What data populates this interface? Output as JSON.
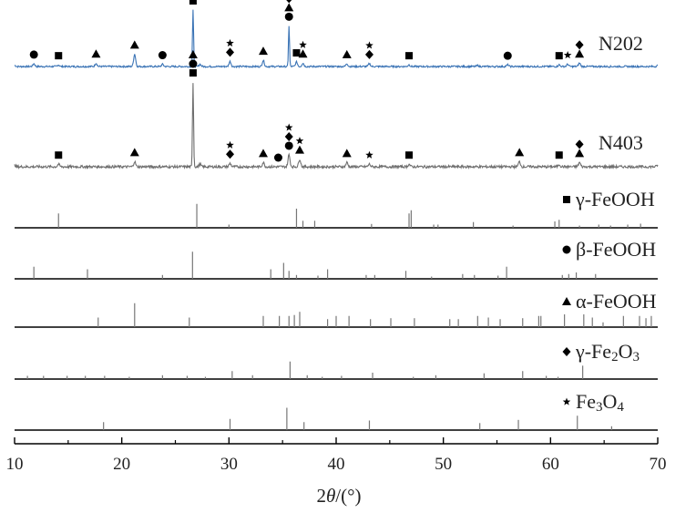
{
  "chart_data": {
    "type": "line",
    "xlabel_parts": [
      "2",
      "θ",
      "/(°)"
    ],
    "xlim": [
      10,
      70
    ],
    "xticks": [
      "10",
      "20",
      "30",
      "40",
      "50",
      "60",
      "70"
    ],
    "legend_symbols": {
      "square": "γ-FeOOH",
      "circle": "β-FeOOH",
      "triangle": "α-FeOOH",
      "diamond": "γ-Fe2O3",
      "star": "Fe3O4"
    },
    "series": [
      {
        "name": "N202",
        "color": "#3a73b5",
        "profile": [
          [
            10,
            0.02
          ],
          [
            11.8,
            0.05
          ],
          [
            14.1,
            0.03
          ],
          [
            17.6,
            0.06
          ],
          [
            21.2,
            0.22
          ],
          [
            23.8,
            0.04
          ],
          [
            26.65,
            1.0
          ],
          [
            27.3,
            0.04
          ],
          [
            30.1,
            0.09
          ],
          [
            33.2,
            0.11
          ],
          [
            35.6,
            0.72
          ],
          [
            36.3,
            0.08
          ],
          [
            36.9,
            0.06
          ],
          [
            41.0,
            0.05
          ],
          [
            43.1,
            0.05
          ],
          [
            46.8,
            0.03
          ],
          [
            53.2,
            0.02
          ],
          [
            56.0,
            0.03
          ],
          [
            60.8,
            0.03
          ],
          [
            61.6,
            0.04
          ],
          [
            62.7,
            0.06
          ],
          [
            70,
            0.02
          ]
        ],
        "markers": [
          {
            "x": 11.8,
            "symbols": [
              "circle"
            ]
          },
          {
            "x": 14.1,
            "symbols": [
              "square"
            ]
          },
          {
            "x": 17.6,
            "symbols": [
              "triangle"
            ]
          },
          {
            "x": 21.2,
            "symbols": [
              "triangle"
            ]
          },
          {
            "x": 23.8,
            "symbols": [
              "circle"
            ]
          },
          {
            "x": 26.65,
            "symbols": [
              "square",
              "triangle",
              "circle"
            ]
          },
          {
            "x": 30.1,
            "symbols": [
              "diamond",
              "star"
            ]
          },
          {
            "x": 33.2,
            "symbols": [
              "triangle"
            ]
          },
          {
            "x": 35.6,
            "symbols": [
              "circle",
              "triangle",
              "diamond",
              "star"
            ]
          },
          {
            "x": 36.3,
            "symbols": [
              "square"
            ]
          },
          {
            "x": 36.9,
            "symbols": [
              "triangle",
              "star"
            ]
          },
          {
            "x": 41.0,
            "symbols": [
              "triangle"
            ]
          },
          {
            "x": 43.1,
            "symbols": [
              "diamond",
              "star"
            ]
          },
          {
            "x": 46.8,
            "symbols": [
              "square"
            ]
          },
          {
            "x": 56.0,
            "symbols": [
              "circle"
            ]
          },
          {
            "x": 60.8,
            "symbols": [
              "square"
            ]
          },
          {
            "x": 61.6,
            "symbols": [
              "star"
            ]
          },
          {
            "x": 62.7,
            "symbols": [
              "triangle",
              "diamond"
            ]
          }
        ]
      },
      {
        "name": "N403",
        "color": "#6e6e6e",
        "profile": [
          [
            10,
            0.02
          ],
          [
            14.1,
            0.03
          ],
          [
            21.2,
            0.06
          ],
          [
            26.65,
            1.0
          ],
          [
            27.3,
            0.03
          ],
          [
            30.1,
            0.04
          ],
          [
            33.2,
            0.05
          ],
          [
            35.6,
            0.14
          ],
          [
            36.6,
            0.09
          ],
          [
            41.0,
            0.05
          ],
          [
            43.1,
            0.03
          ],
          [
            46.8,
            0.03
          ],
          [
            57.1,
            0.06
          ],
          [
            60.8,
            0.03
          ],
          [
            62.7,
            0.05
          ],
          [
            70,
            0.02
          ]
        ],
        "markers": [
          {
            "x": 14.1,
            "symbols": [
              "square"
            ]
          },
          {
            "x": 21.2,
            "symbols": [
              "triangle"
            ]
          },
          {
            "x": 26.65,
            "symbols": [
              "square",
              "circle",
              "triangle"
            ]
          },
          {
            "x": 30.1,
            "symbols": [
              "diamond",
              "star"
            ]
          },
          {
            "x": 33.2,
            "symbols": [
              "triangle"
            ]
          },
          {
            "x": 34.6,
            "symbols": [
              "circle"
            ]
          },
          {
            "x": 35.6,
            "symbols": [
              "circle",
              "diamond",
              "star"
            ]
          },
          {
            "x": 36.6,
            "symbols": [
              "triangle",
              "star"
            ]
          },
          {
            "x": 41.0,
            "symbols": [
              "triangle"
            ]
          },
          {
            "x": 43.1,
            "symbols": [
              "star"
            ]
          },
          {
            "x": 46.8,
            "symbols": [
              "square"
            ]
          },
          {
            "x": 57.1,
            "symbols": [
              "triangle"
            ]
          },
          {
            "x": 60.8,
            "symbols": [
              "square"
            ]
          },
          {
            "x": 62.7,
            "symbols": [
              "triangle",
              "diamond"
            ]
          }
        ]
      }
    ],
    "references": [
      {
        "name": "γ-FeOOH",
        "label_parts": [
          [
            "γ-FeOOH",
            false
          ]
        ],
        "symbol": "square",
        "peaks": [
          [
            14.1,
            0.45
          ],
          [
            27.0,
            0.75
          ],
          [
            30.0,
            0.1
          ],
          [
            36.3,
            0.6
          ],
          [
            36.9,
            0.22
          ],
          [
            38.0,
            0.22
          ],
          [
            43.3,
            0.12
          ],
          [
            46.8,
            0.45
          ],
          [
            47.0,
            0.55
          ],
          [
            49.1,
            0.1
          ],
          [
            49.5,
            0.1
          ],
          [
            52.8,
            0.18
          ],
          [
            56.5,
            0.07
          ],
          [
            60.4,
            0.2
          ],
          [
            60.8,
            0.25
          ],
          [
            62.7,
            0.07
          ],
          [
            64.5,
            0.1
          ],
          [
            65.6,
            0.07
          ],
          [
            67.2,
            0.1
          ],
          [
            68.4,
            0.13
          ]
        ]
      },
      {
        "name": "β-FeOOH",
        "label_parts": [
          [
            "β-FeOOH",
            false
          ]
        ],
        "symbol": "circle",
        "peaks": [
          [
            11.8,
            0.38
          ],
          [
            16.8,
            0.3
          ],
          [
            23.8,
            0.12
          ],
          [
            26.6,
            0.85
          ],
          [
            33.9,
            0.3
          ],
          [
            35.1,
            0.5
          ],
          [
            35.6,
            0.25
          ],
          [
            36.3,
            0.12
          ],
          [
            38.3,
            0.1
          ],
          [
            39.2,
            0.3
          ],
          [
            42.8,
            0.12
          ],
          [
            43.6,
            0.12
          ],
          [
            46.5,
            0.25
          ],
          [
            48.9,
            0.07
          ],
          [
            51.8,
            0.15
          ],
          [
            52.9,
            0.12
          ],
          [
            55.1,
            0.1
          ],
          [
            55.9,
            0.38
          ],
          [
            61.1,
            0.12
          ],
          [
            61.7,
            0.15
          ],
          [
            62.4,
            0.2
          ],
          [
            64.2,
            0.15
          ]
        ]
      },
      {
        "name": "α-FeOOH",
        "label_parts": [
          [
            "α-FeOOH",
            false
          ]
        ],
        "symbol": "triangle",
        "peaks": [
          [
            17.8,
            0.3
          ],
          [
            21.2,
            0.75
          ],
          [
            26.3,
            0.3
          ],
          [
            33.2,
            0.35
          ],
          [
            34.7,
            0.35
          ],
          [
            35.6,
            0.35
          ],
          [
            36.1,
            0.38
          ],
          [
            36.6,
            0.48
          ],
          [
            39.2,
            0.25
          ],
          [
            40.0,
            0.35
          ],
          [
            41.2,
            0.35
          ],
          [
            43.2,
            0.25
          ],
          [
            45.1,
            0.28
          ],
          [
            47.3,
            0.28
          ],
          [
            50.6,
            0.25
          ],
          [
            51.4,
            0.25
          ],
          [
            53.2,
            0.35
          ],
          [
            54.2,
            0.3
          ],
          [
            55.3,
            0.25
          ],
          [
            57.4,
            0.28
          ],
          [
            58.9,
            0.35
          ],
          [
            59.1,
            0.35
          ],
          [
            61.3,
            0.4
          ],
          [
            63.1,
            0.4
          ],
          [
            63.9,
            0.3
          ],
          [
            64.9,
            0.15
          ],
          [
            66.8,
            0.35
          ],
          [
            68.3,
            0.35
          ],
          [
            68.9,
            0.28
          ],
          [
            69.4,
            0.35
          ]
        ]
      },
      {
        "name": "γ-Fe2O3",
        "label_parts": [
          [
            "γ-Fe",
            false
          ],
          [
            "2",
            true
          ],
          [
            "O",
            false
          ],
          [
            "3",
            true
          ]
        ],
        "symbol": "diamond",
        "peaks": [
          [
            11.2,
            0.1
          ],
          [
            12.7,
            0.1
          ],
          [
            14.9,
            0.1
          ],
          [
            16.6,
            0.1
          ],
          [
            18.4,
            0.1
          ],
          [
            20.7,
            0.07
          ],
          [
            23.8,
            0.12
          ],
          [
            26.1,
            0.1
          ],
          [
            27.8,
            0.07
          ],
          [
            30.3,
            0.25
          ],
          [
            32.2,
            0.12
          ],
          [
            35.7,
            0.55
          ],
          [
            37.3,
            0.12
          ],
          [
            38.7,
            0.07
          ],
          [
            40.5,
            0.1
          ],
          [
            43.4,
            0.2
          ],
          [
            47.2,
            0.07
          ],
          [
            49.3,
            0.12
          ],
          [
            53.8,
            0.18
          ],
          [
            57.4,
            0.25
          ],
          [
            59.6,
            0.1
          ],
          [
            60.7,
            0.07
          ],
          [
            63.0,
            0.42
          ]
        ]
      },
      {
        "name": "Fe3O4",
        "label_parts": [
          [
            "Fe",
            false
          ],
          [
            "3",
            true
          ],
          [
            "O",
            false
          ],
          [
            "4",
            true
          ]
        ],
        "symbol": "star",
        "peaks": [
          [
            18.3,
            0.25
          ],
          [
            30.1,
            0.35
          ],
          [
            35.4,
            0.7
          ],
          [
            37.0,
            0.25
          ],
          [
            43.1,
            0.3
          ],
          [
            53.4,
            0.22
          ],
          [
            57.0,
            0.32
          ],
          [
            62.5,
            0.45
          ],
          [
            65.7,
            0.12
          ]
        ]
      }
    ]
  }
}
